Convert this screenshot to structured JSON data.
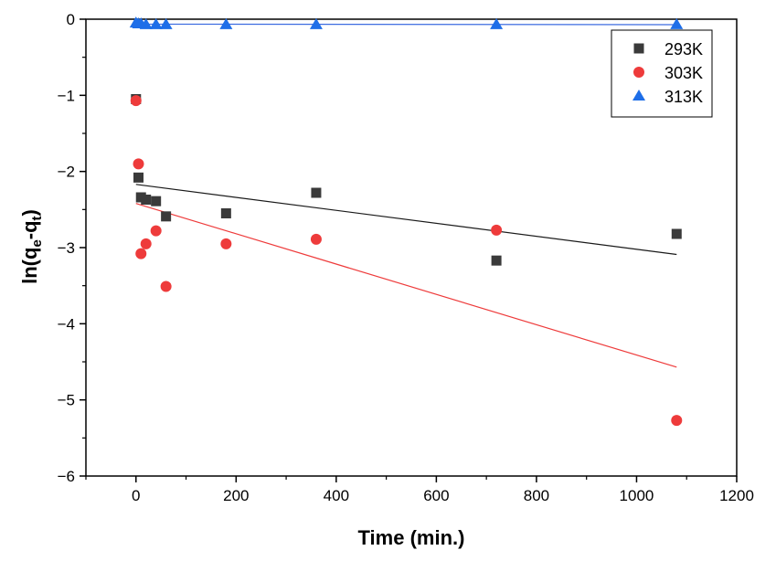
{
  "chart_data": {
    "type": "scatter",
    "title": "",
    "xlabel": "Time (min.)",
    "ylabel": {
      "base": "ln(q",
      "sub1": "e",
      "mid": "-q",
      "sub2": "t",
      "end": ")"
    },
    "xlim": [
      -100,
      1200
    ],
    "ylim": [
      -6,
      0
    ],
    "xticks": [
      0,
      200,
      400,
      600,
      800,
      1000,
      1200
    ],
    "yticks": [
      0,
      -1,
      -2,
      -3,
      -4,
      -5,
      -6
    ],
    "legend_position": "top-right",
    "series": [
      {
        "name": "293K",
        "marker": "square",
        "color": "#3a3a3a",
        "line_color": "#1a1a1a",
        "x": [
          0,
          5,
          10,
          20,
          40,
          60,
          180,
          360,
          720,
          1080
        ],
        "y": [
          -1.05,
          -2.08,
          -2.34,
          -2.37,
          -2.39,
          -2.59,
          -2.55,
          -2.28,
          -3.17,
          -2.82
        ],
        "fit": {
          "x": [
            0,
            1080
          ],
          "y": [
            -2.17,
            -3.09
          ]
        }
      },
      {
        "name": "303K",
        "marker": "circle",
        "color": "#ee3b3b",
        "line_color": "#ee3b3b",
        "x": [
          0,
          5,
          10,
          20,
          40,
          60,
          180,
          360,
          720,
          1080
        ],
        "y": [
          -1.07,
          -1.9,
          -3.08,
          -2.95,
          -2.78,
          -3.51,
          -2.95,
          -2.89,
          -2.77,
          -5.27
        ],
        "fit": {
          "x": [
            0,
            1080
          ],
          "y": [
            -2.42,
            -4.57
          ]
        }
      },
      {
        "name": "313K",
        "marker": "triangle",
        "color": "#1e6ee8",
        "line_color": "#3d6ce0",
        "x": [
          0,
          5,
          10,
          20,
          40,
          60,
          180,
          360,
          720,
          1080
        ],
        "y": [
          -0.05,
          -0.06,
          -0.06,
          -0.07,
          -0.07,
          -0.07,
          -0.07,
          -0.07,
          -0.07,
          -0.07
        ],
        "fit": {
          "x": [
            0,
            1080
          ],
          "y": [
            -0.065,
            -0.072
          ]
        }
      }
    ]
  }
}
